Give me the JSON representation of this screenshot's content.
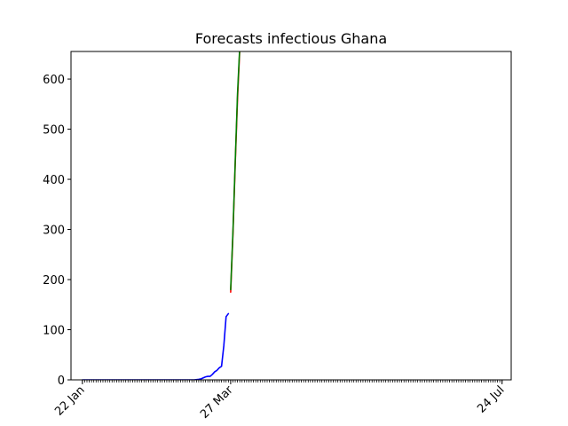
{
  "chart_data": {
    "type": "line",
    "title": "Forecasts infectious Ghana",
    "xlabel": "",
    "ylabel": "",
    "x_axis": {
      "kind": "date",
      "range": [
        "2020-01-17",
        "2020-07-28"
      ],
      "labeled_ticks": [
        {
          "date": "2020-01-22",
          "label": "22 Jan"
        },
        {
          "date": "2020-03-27",
          "label": "27 Mar"
        },
        {
          "date": "2020-07-24",
          "label": "24 Jul"
        }
      ],
      "minor_ticks": {
        "start": "2020-01-22",
        "end": "2020-07-24",
        "step_days": 1
      }
    },
    "ylim": [
      0,
      655
    ],
    "yticks": [
      0,
      100,
      200,
      300,
      400,
      500,
      600
    ],
    "grid": false,
    "series": [
      {
        "color": "#0000ff",
        "points": [
          [
            "2020-01-22",
            0
          ],
          [
            "2020-02-05",
            0
          ],
          [
            "2020-02-19",
            0
          ],
          [
            "2020-03-04",
            0
          ],
          [
            "2020-03-11",
            0
          ],
          [
            "2020-03-13",
            1
          ],
          [
            "2020-03-14",
            2
          ],
          [
            "2020-03-15",
            4
          ],
          [
            "2020-03-16",
            6
          ],
          [
            "2020-03-17",
            7
          ],
          [
            "2020-03-18",
            7
          ],
          [
            "2020-03-19",
            11
          ],
          [
            "2020-03-20",
            16
          ],
          [
            "2020-03-21",
            19
          ],
          [
            "2020-03-22",
            24
          ],
          [
            "2020-03-23",
            27
          ],
          [
            "2020-03-24",
            68
          ],
          [
            "2020-03-25",
            126
          ],
          [
            "2020-03-26",
            132
          ]
        ]
      },
      {
        "color": "#ff0000",
        "points": [
          [
            "2020-03-27",
            175
          ],
          [
            "2020-03-28",
            290
          ],
          [
            "2020-03-29",
            430
          ],
          [
            "2020-03-30",
            560
          ],
          [
            "2020-03-31",
            660
          ]
        ]
      },
      {
        "color": "#008000",
        "points": [
          [
            "2020-03-27",
            180
          ],
          [
            "2020-03-28",
            295
          ],
          [
            "2020-03-29",
            435
          ],
          [
            "2020-03-30",
            570
          ],
          [
            "2020-03-31",
            665
          ]
        ]
      }
    ]
  }
}
